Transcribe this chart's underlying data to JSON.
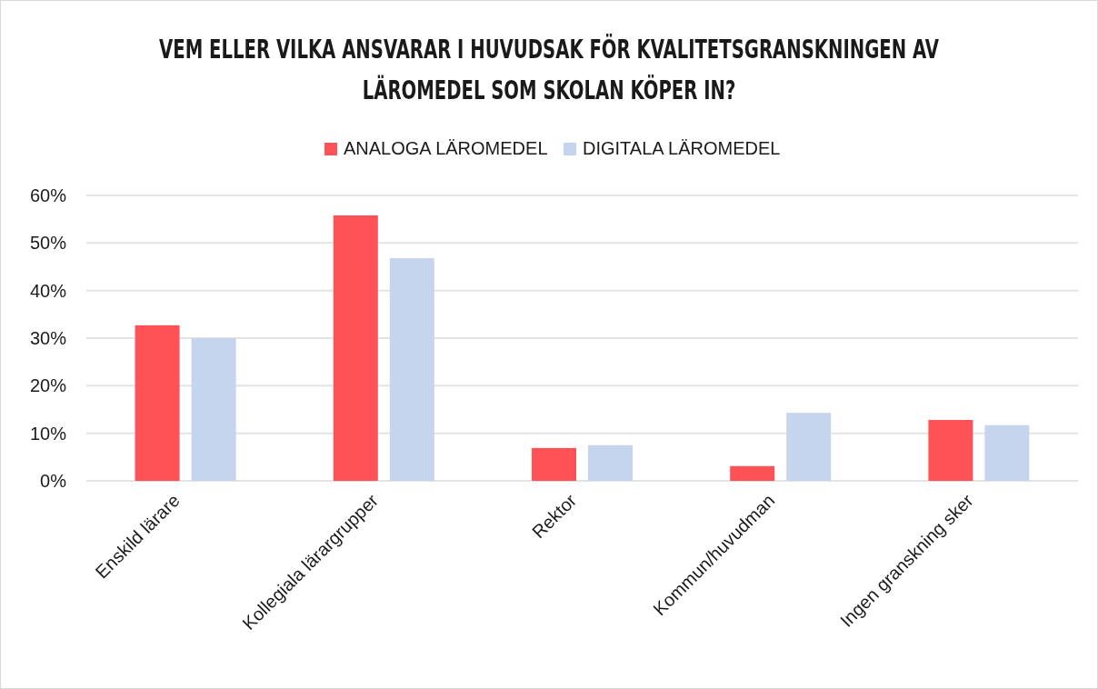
{
  "chart_data": {
    "type": "bar",
    "title": "VEM ELLER VILKA ANSVARAR I HUVUDSAK FÖR KVALITETSGRANSKNINGEN AV LÄROMEDEL SOM SKOLAN KÖPER IN?",
    "categories": [
      "Enskild lärare",
      "Kollegiala lärargrupper",
      "Rektor",
      "Kommun/huvudman",
      "Ingen granskning sker"
    ],
    "series": [
      {
        "name": "ANALOGA LÄROMEDEL",
        "color": "#ff5257",
        "values": [
          32.7,
          55.8,
          6.9,
          3.1,
          12.8
        ]
      },
      {
        "name": "DIGITALA LÄROMEDEL",
        "color": "#c5d5ee",
        "values": [
          30.0,
          46.8,
          7.5,
          14.3,
          11.7
        ]
      }
    ],
    "ylim": [
      0,
      60
    ],
    "yticks": [
      {
        "value": 0,
        "label": "0%"
      },
      {
        "value": 10,
        "label": "10%"
      },
      {
        "value": 20,
        "label": "20%"
      },
      {
        "value": 30,
        "label": "30%"
      },
      {
        "value": 40,
        "label": "40%"
      },
      {
        "value": 50,
        "label": "50%"
      },
      {
        "value": 60,
        "label": "60%"
      }
    ],
    "grid": "y",
    "legend": "top"
  }
}
